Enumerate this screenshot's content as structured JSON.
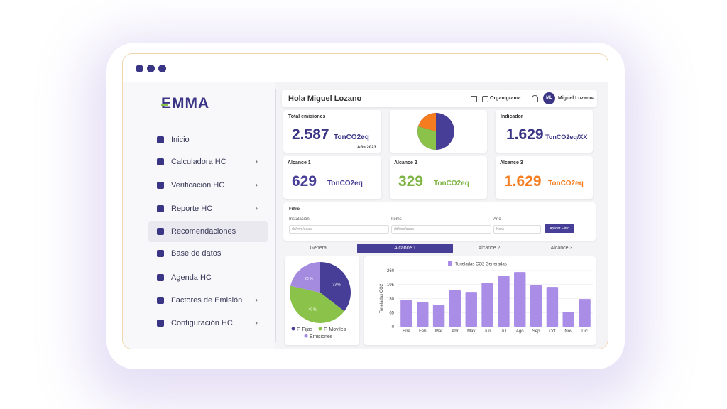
{
  "logo": "EMMA",
  "sidebar": {
    "items": [
      {
        "label": "Inicio",
        "submenu": false
      },
      {
        "label": "Calculadora HC",
        "submenu": true
      },
      {
        "label": "Verificación HC",
        "submenu": true
      },
      {
        "label": "Reporte HC",
        "submenu": true
      },
      {
        "label": "Recomendaciones",
        "submenu": false,
        "selected": true
      },
      {
        "label": "Base de datos",
        "submenu": false
      },
      {
        "label": "Agenda HC",
        "submenu": false
      },
      {
        "label": "Factores de Emisión",
        "submenu": true
      },
      {
        "label": "Configuración HC",
        "submenu": true
      }
    ]
  },
  "header": {
    "greeting": "Hola Miguel Lozano",
    "link": "Organigrama",
    "avatar": "ML",
    "user": "Miguel Lozano"
  },
  "cards": [
    {
      "title": "Total emisiones",
      "value": "2.587",
      "unit": "TonCO2eq",
      "note": "Año 2023"
    },
    {
      "title": "Indicador",
      "value": "1.629",
      "unit": "TonCO2eq/XX"
    }
  ],
  "scopes": [
    {
      "title": "Alcance 1",
      "value": "629",
      "unit": "TonCO2eq",
      "color": "#473f97"
    },
    {
      "title": "Alcance 2",
      "value": "329",
      "unit": "TonCO2eq",
      "color": "#7cb342"
    },
    {
      "title": "Alcance 3",
      "value": "1.629",
      "unit": "TonCO2eq",
      "color": "#f57c1f"
    }
  ],
  "filter": {
    "title": "Filtro",
    "fields": [
      {
        "label": "Instalación",
        "placeholder": "dd/mm/aaaa"
      },
      {
        "label": "Items",
        "placeholder": "dd/mm/aaaa"
      },
      {
        "label": "Año",
        "placeholder": "Hora"
      }
    ],
    "button": "Aplicar Filtro"
  },
  "tabs": [
    {
      "label": "General"
    },
    {
      "label": "Alcance 1",
      "selected": true
    },
    {
      "label": "Alcance 2"
    },
    {
      "label": "Alcance 3"
    }
  ],
  "pie": {
    "values": [
      33,
      40,
      20
    ],
    "value_labels": [
      "33 %",
      "40 %",
      "20 %"
    ],
    "colors": [
      "#473f97",
      "#8bc34a",
      "#a48be0"
    ],
    "legend": [
      "F. Fijas",
      "F. Moviles",
      "Emisiones"
    ]
  },
  "bar_chart": {
    "legend": "Toneladas CO2 Generadas",
    "ylabel": "Toneladas CO2",
    "color": "#a98de6",
    "categories": [
      "Ene",
      "Feb",
      "Mar",
      "Abr",
      "May",
      "Jun",
      "Jul",
      "Ago",
      "Sep",
      "Oct",
      "Nov",
      "Dic"
    ],
    "values": [
      125,
      112,
      102,
      168,
      161,
      204,
      234,
      253,
      191,
      184,
      69,
      128
    ],
    "ylim": [
      0,
      260
    ],
    "yticks": [
      0,
      65,
      130,
      195,
      260
    ],
    "grid": true
  }
}
